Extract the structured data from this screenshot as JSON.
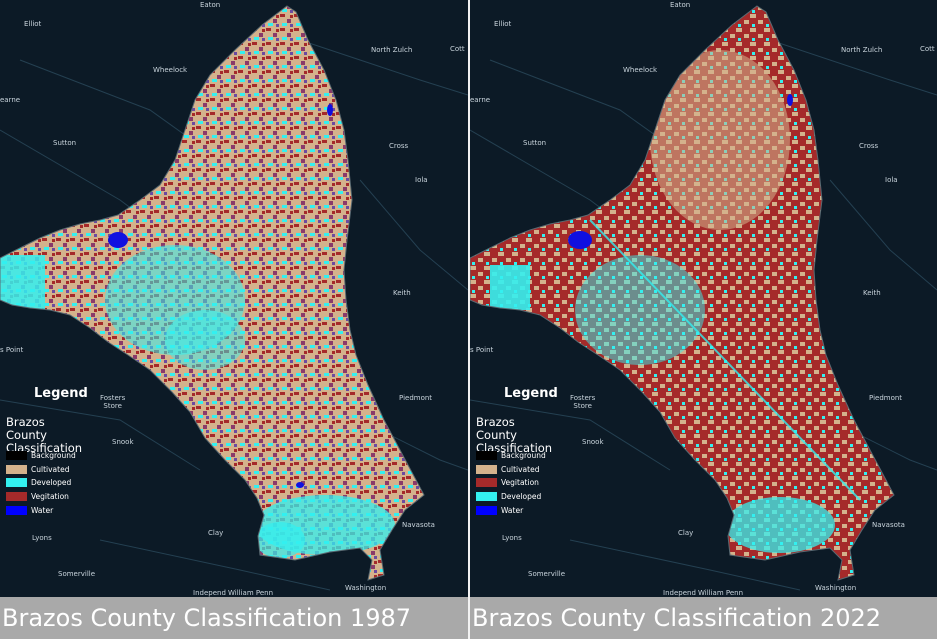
{
  "colors": {
    "background": "#000000",
    "cultivated": "#d4b28c",
    "developed": "#33f0f0",
    "vegetation": "#a52a2a",
    "water": "#0000ff",
    "basemap": "#0c1a26"
  },
  "maps": [
    {
      "caption": "Brazos County Classification 1987",
      "legend": {
        "title": "Legend",
        "subtitle": "Brazos County Classification",
        "items": [
          {
            "label": "Background",
            "color": "#000000"
          },
          {
            "label": "Cultivated",
            "color": "#d4b28c"
          },
          {
            "label": "Developed",
            "color": "#33f0f0"
          },
          {
            "label": "Vegitation",
            "color": "#a52a2a"
          },
          {
            "label": "Water",
            "color": "#0000ff"
          }
        ]
      },
      "places": {
        "eaton": "Eaton",
        "elliot": "Elliot",
        "north_zulch": "North Zulch",
        "cott": "Cott",
        "wheelock": "Wheelock",
        "kearne": "earne",
        "sutton": "Sutton",
        "cross": "Cross",
        "iola": "Iola",
        "keith": "Keith",
        "point": "s Point",
        "fosters_store": "Fosters\nStore",
        "piedmont": "Piedmont",
        "snook": "Snook",
        "clay": "Clay",
        "navasota": "Navasota",
        "lyons": "Lyons",
        "somerville": "Somerville",
        "washington": "Washington",
        "independence": "Independ",
        "william_penn": "William Penn"
      }
    },
    {
      "caption": "Brazos County Classification 2022",
      "legend": {
        "title": "Legend",
        "subtitle": "Brazos County Classification",
        "items": [
          {
            "label": "Background",
            "color": "#000000"
          },
          {
            "label": "Cultivated",
            "color": "#d4b28c"
          },
          {
            "label": "Vegitation",
            "color": "#a52a2a"
          },
          {
            "label": "Developed",
            "color": "#33f0f0"
          },
          {
            "label": "Water",
            "color": "#0000ff"
          }
        ]
      },
      "places": {
        "eaton": "Eaton",
        "elliot": "Elliot",
        "north_zulch": "North Zulch",
        "cott": "Cott",
        "wheelock": "Wheelock",
        "kearne": "earne",
        "sutton": "Sutton",
        "cross": "Cross",
        "iola": "Iola",
        "keith": "Keith",
        "point": "s Point",
        "fosters_store": "Fosters\nStore",
        "piedmont": "Piedmont",
        "snook": "Snook",
        "clay": "Clay",
        "navasota": "Navasota",
        "lyons": "Lyons",
        "somerville": "Somerville",
        "washington": "Washington",
        "independence": "Independ",
        "william_penn": "William Penn"
      }
    }
  ]
}
